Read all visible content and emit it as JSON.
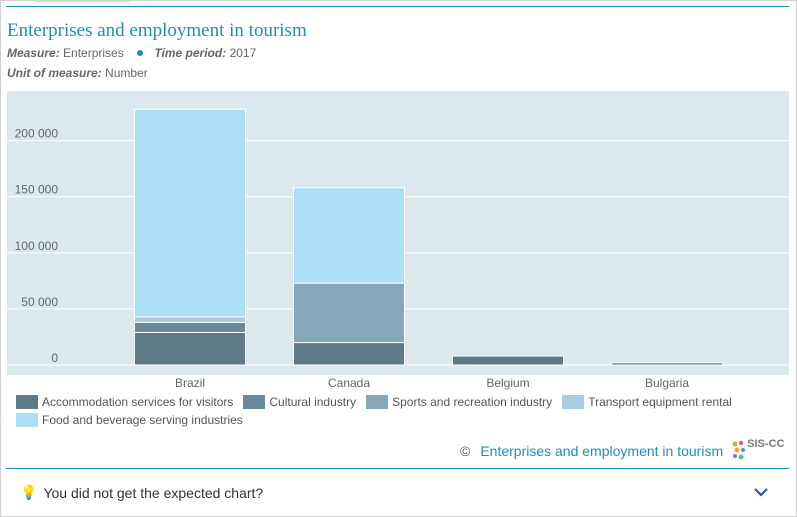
{
  "header": {
    "title": "Enterprises and employment in tourism",
    "measure_label": "Measure:",
    "measure_value": "Enterprises",
    "time_label": "Time period:",
    "time_value": "2017",
    "unit_label": "Unit of measure:",
    "unit_value": "Number"
  },
  "chart_data": {
    "type": "bar",
    "stacked": true,
    "title": "Enterprises and employment in tourism",
    "categories": [
      "Brazil",
      "Canada",
      "Belgium",
      "Bulgaria"
    ],
    "series": [
      {
        "name": "Accommodation services for visitors",
        "color": "#5e7a89",
        "values": [
          29000,
          20000,
          8000,
          2000
        ]
      },
      {
        "name": "Cultural industry",
        "color": "#6a8a9c",
        "values": [
          9000,
          0,
          0,
          0
        ]
      },
      {
        "name": "Sports and recreation industry",
        "color": "#84a7ba",
        "values": [
          0,
          53000,
          0,
          0
        ]
      },
      {
        "name": "Transport equipment rental",
        "color": "#a5cde1",
        "values": [
          5000,
          0,
          0,
          0
        ]
      },
      {
        "name": "Food and beverage serving industries",
        "color": "#abdff6",
        "values": [
          185000,
          85000,
          0,
          0
        ]
      }
    ],
    "y_ticks": [
      0,
      50000,
      100000,
      150000,
      200000
    ],
    "y_tick_labels": [
      "0",
      "50 000",
      "100 000",
      "150 000",
      "200 000"
    ],
    "ylim": [
      0,
      230000
    ],
    "grid": true,
    "legend_position": "bottom",
    "plot_background": "#dbe9ef",
    "grid_color": "#ffffff"
  },
  "source": {
    "copyright_symbol": "©",
    "link_text": "Enterprises and employment in tourism",
    "logo_text": "SIS-CC"
  },
  "feedback": {
    "bulb_icon": "💡",
    "text": "You did not get the expected chart?"
  },
  "colors": {
    "accent": "#1f8bbf"
  }
}
